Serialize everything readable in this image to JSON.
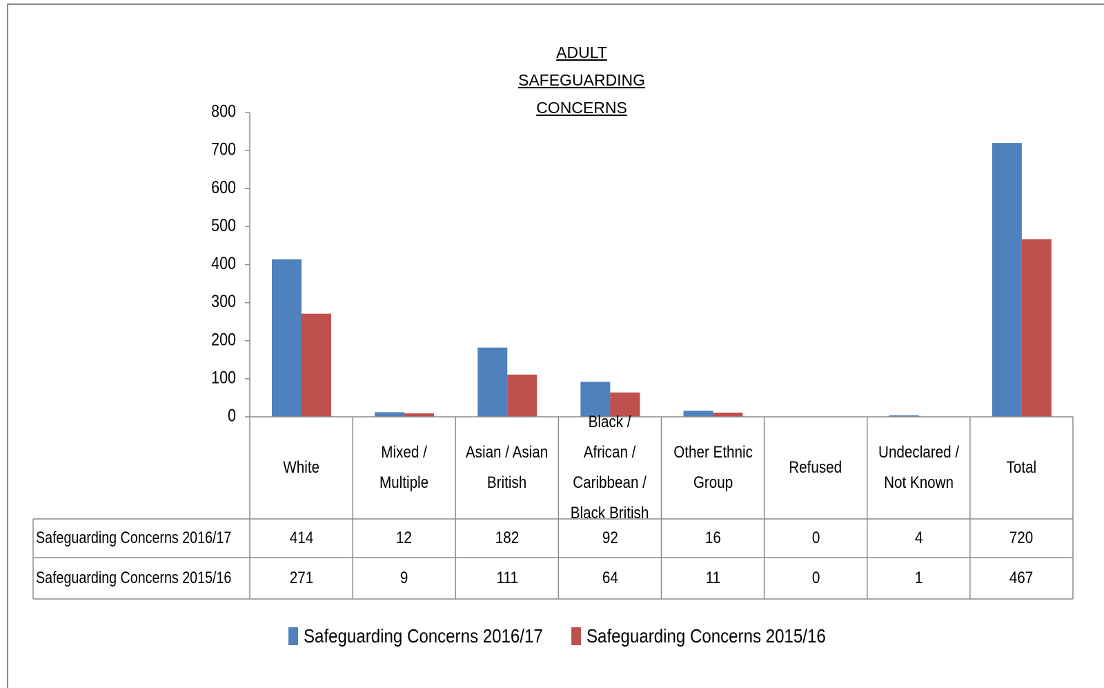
{
  "chart_data": {
    "type": "bar",
    "title": "ADULT SAFEGUARDING CONCERNS",
    "categories": [
      "White",
      "Mixed / Multiple",
      "Asian / Asian British",
      "Black / African / Caribbean / Black British",
      "Other Ethnic Group",
      "Refused",
      "Undeclared / Not Known",
      "Total"
    ],
    "series": [
      {
        "name": "Safeguarding Concerns 2016/17",
        "color": "#4f81bd",
        "values": [
          414,
          12,
          182,
          92,
          16,
          0,
          4,
          720
        ]
      },
      {
        "name": "Safeguarding Concerns 2015/16",
        "color": "#c0504d",
        "values": [
          271,
          9,
          111,
          64,
          11,
          0,
          1,
          467
        ]
      }
    ],
    "ylim": [
      0,
      800
    ],
    "yticks": [
      0,
      100,
      200,
      300,
      400,
      500,
      600,
      700,
      800
    ],
    "grid": false,
    "legend": "bottom"
  }
}
